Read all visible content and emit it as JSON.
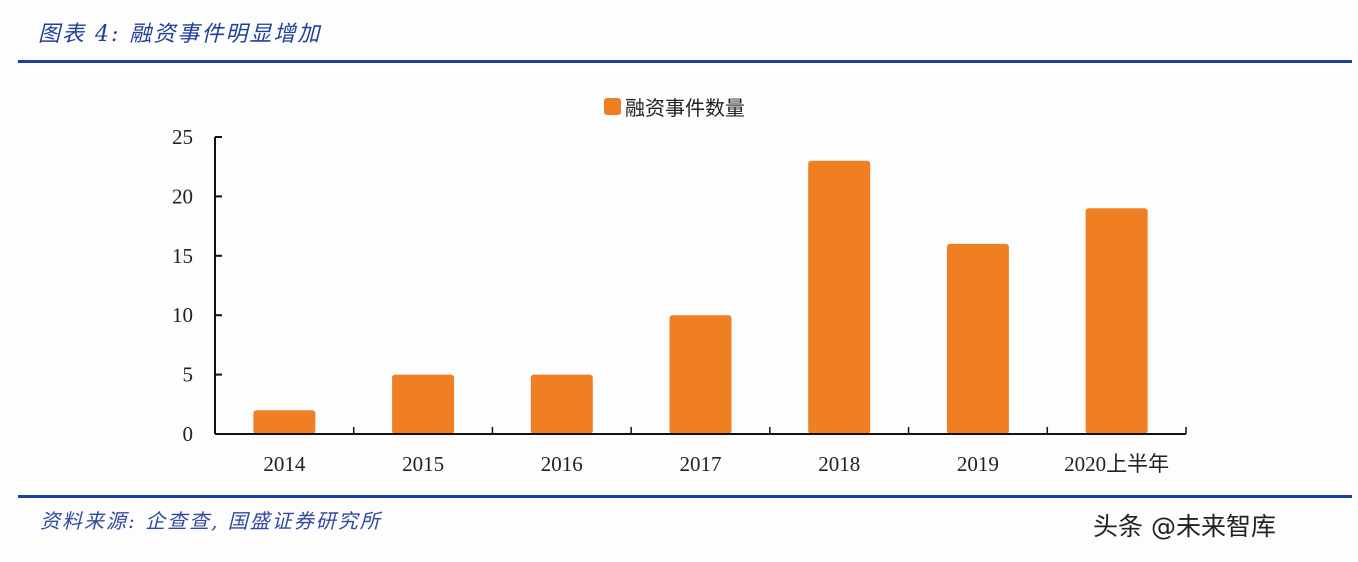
{
  "header": {
    "title": "图表 4:  融资事件明显增加"
  },
  "footer": {
    "source": "资料来源:  企查查,  国盛证券研究所",
    "watermark": "头条 @未来智库"
  },
  "colors": {
    "bar": "#f07f24",
    "rule": "#1c3fa0",
    "title": "#1f3f9a"
  },
  "chart_data": {
    "type": "bar",
    "title": "",
    "categories": [
      "2014",
      "2015",
      "2016",
      "2017",
      "2018",
      "2019",
      "2020上半年"
    ],
    "series": [
      {
        "name": "融资事件数量",
        "values": [
          2,
          5,
          5,
          10,
          23,
          16,
          19
        ]
      }
    ],
    "xlabel": "",
    "ylabel": "",
    "ylim": [
      0,
      25
    ],
    "yticks": [
      "0",
      "5",
      "10",
      "15",
      "20",
      "25"
    ],
    "grid": false,
    "legend_position": "top"
  }
}
